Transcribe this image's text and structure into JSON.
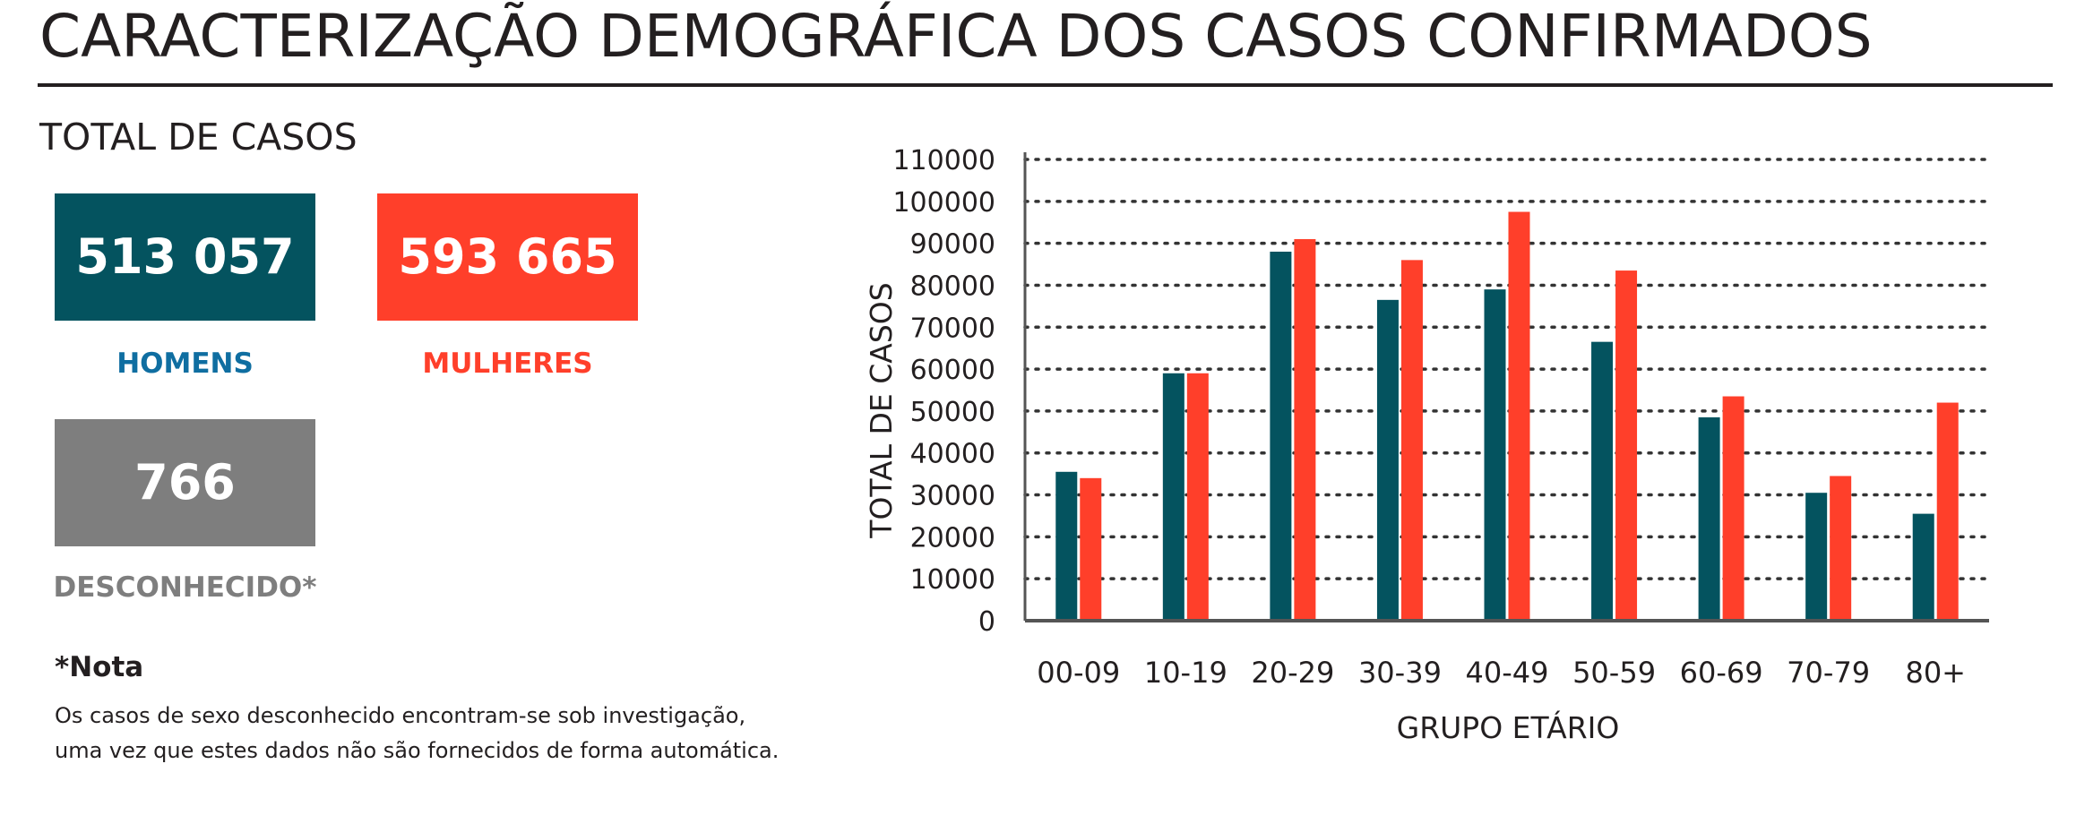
{
  "header": {
    "title": "CARACTERIZAÇÃO DEMOGRÁFICA DOS CASOS CONFIRMADOS"
  },
  "totals": {
    "section_title": "TOTAL DE CASOS",
    "men": {
      "value": "513 057",
      "label": "HOMENS",
      "box_color": "#04535f",
      "label_color": "#0f6ea1"
    },
    "women": {
      "value": "593 665",
      "label": "MULHERES",
      "box_color": "#ff3f2a",
      "label_color": "#ff3f2a"
    },
    "unknown": {
      "value": "766",
      "label": "DESCONHECIDO*",
      "box_color": "#7e7e7e",
      "label_color": "#7e7e7e"
    }
  },
  "note": {
    "title": "*Nota",
    "lines": [
      "Os casos de sexo desconhecido encontram-se sob investigação,",
      "uma vez que estes dados não são fornecidos de forma automática."
    ]
  },
  "chart_data": {
    "type": "bar",
    "title": "",
    "xlabel": "GRUPO ETÁRIO",
    "ylabel": "TOTAL DE CASOS",
    "ylim": [
      0,
      110000
    ],
    "yticks": [
      0,
      10000,
      20000,
      30000,
      40000,
      50000,
      60000,
      70000,
      80000,
      90000,
      100000,
      110000
    ],
    "grid": true,
    "categories": [
      "00-09",
      "10-19",
      "20-29",
      "30-39",
      "40-49",
      "50-59",
      "60-69",
      "70-79",
      "80+"
    ],
    "series": [
      {
        "color": "#04535f",
        "values": [
          35500,
          59000,
          88000,
          76500,
          79000,
          66500,
          48500,
          30500,
          25500
        ]
      },
      {
        "color": "#ff3f2a",
        "values": [
          34000,
          59000,
          91000,
          86000,
          97500,
          83500,
          53500,
          34500,
          52000
        ]
      }
    ]
  }
}
